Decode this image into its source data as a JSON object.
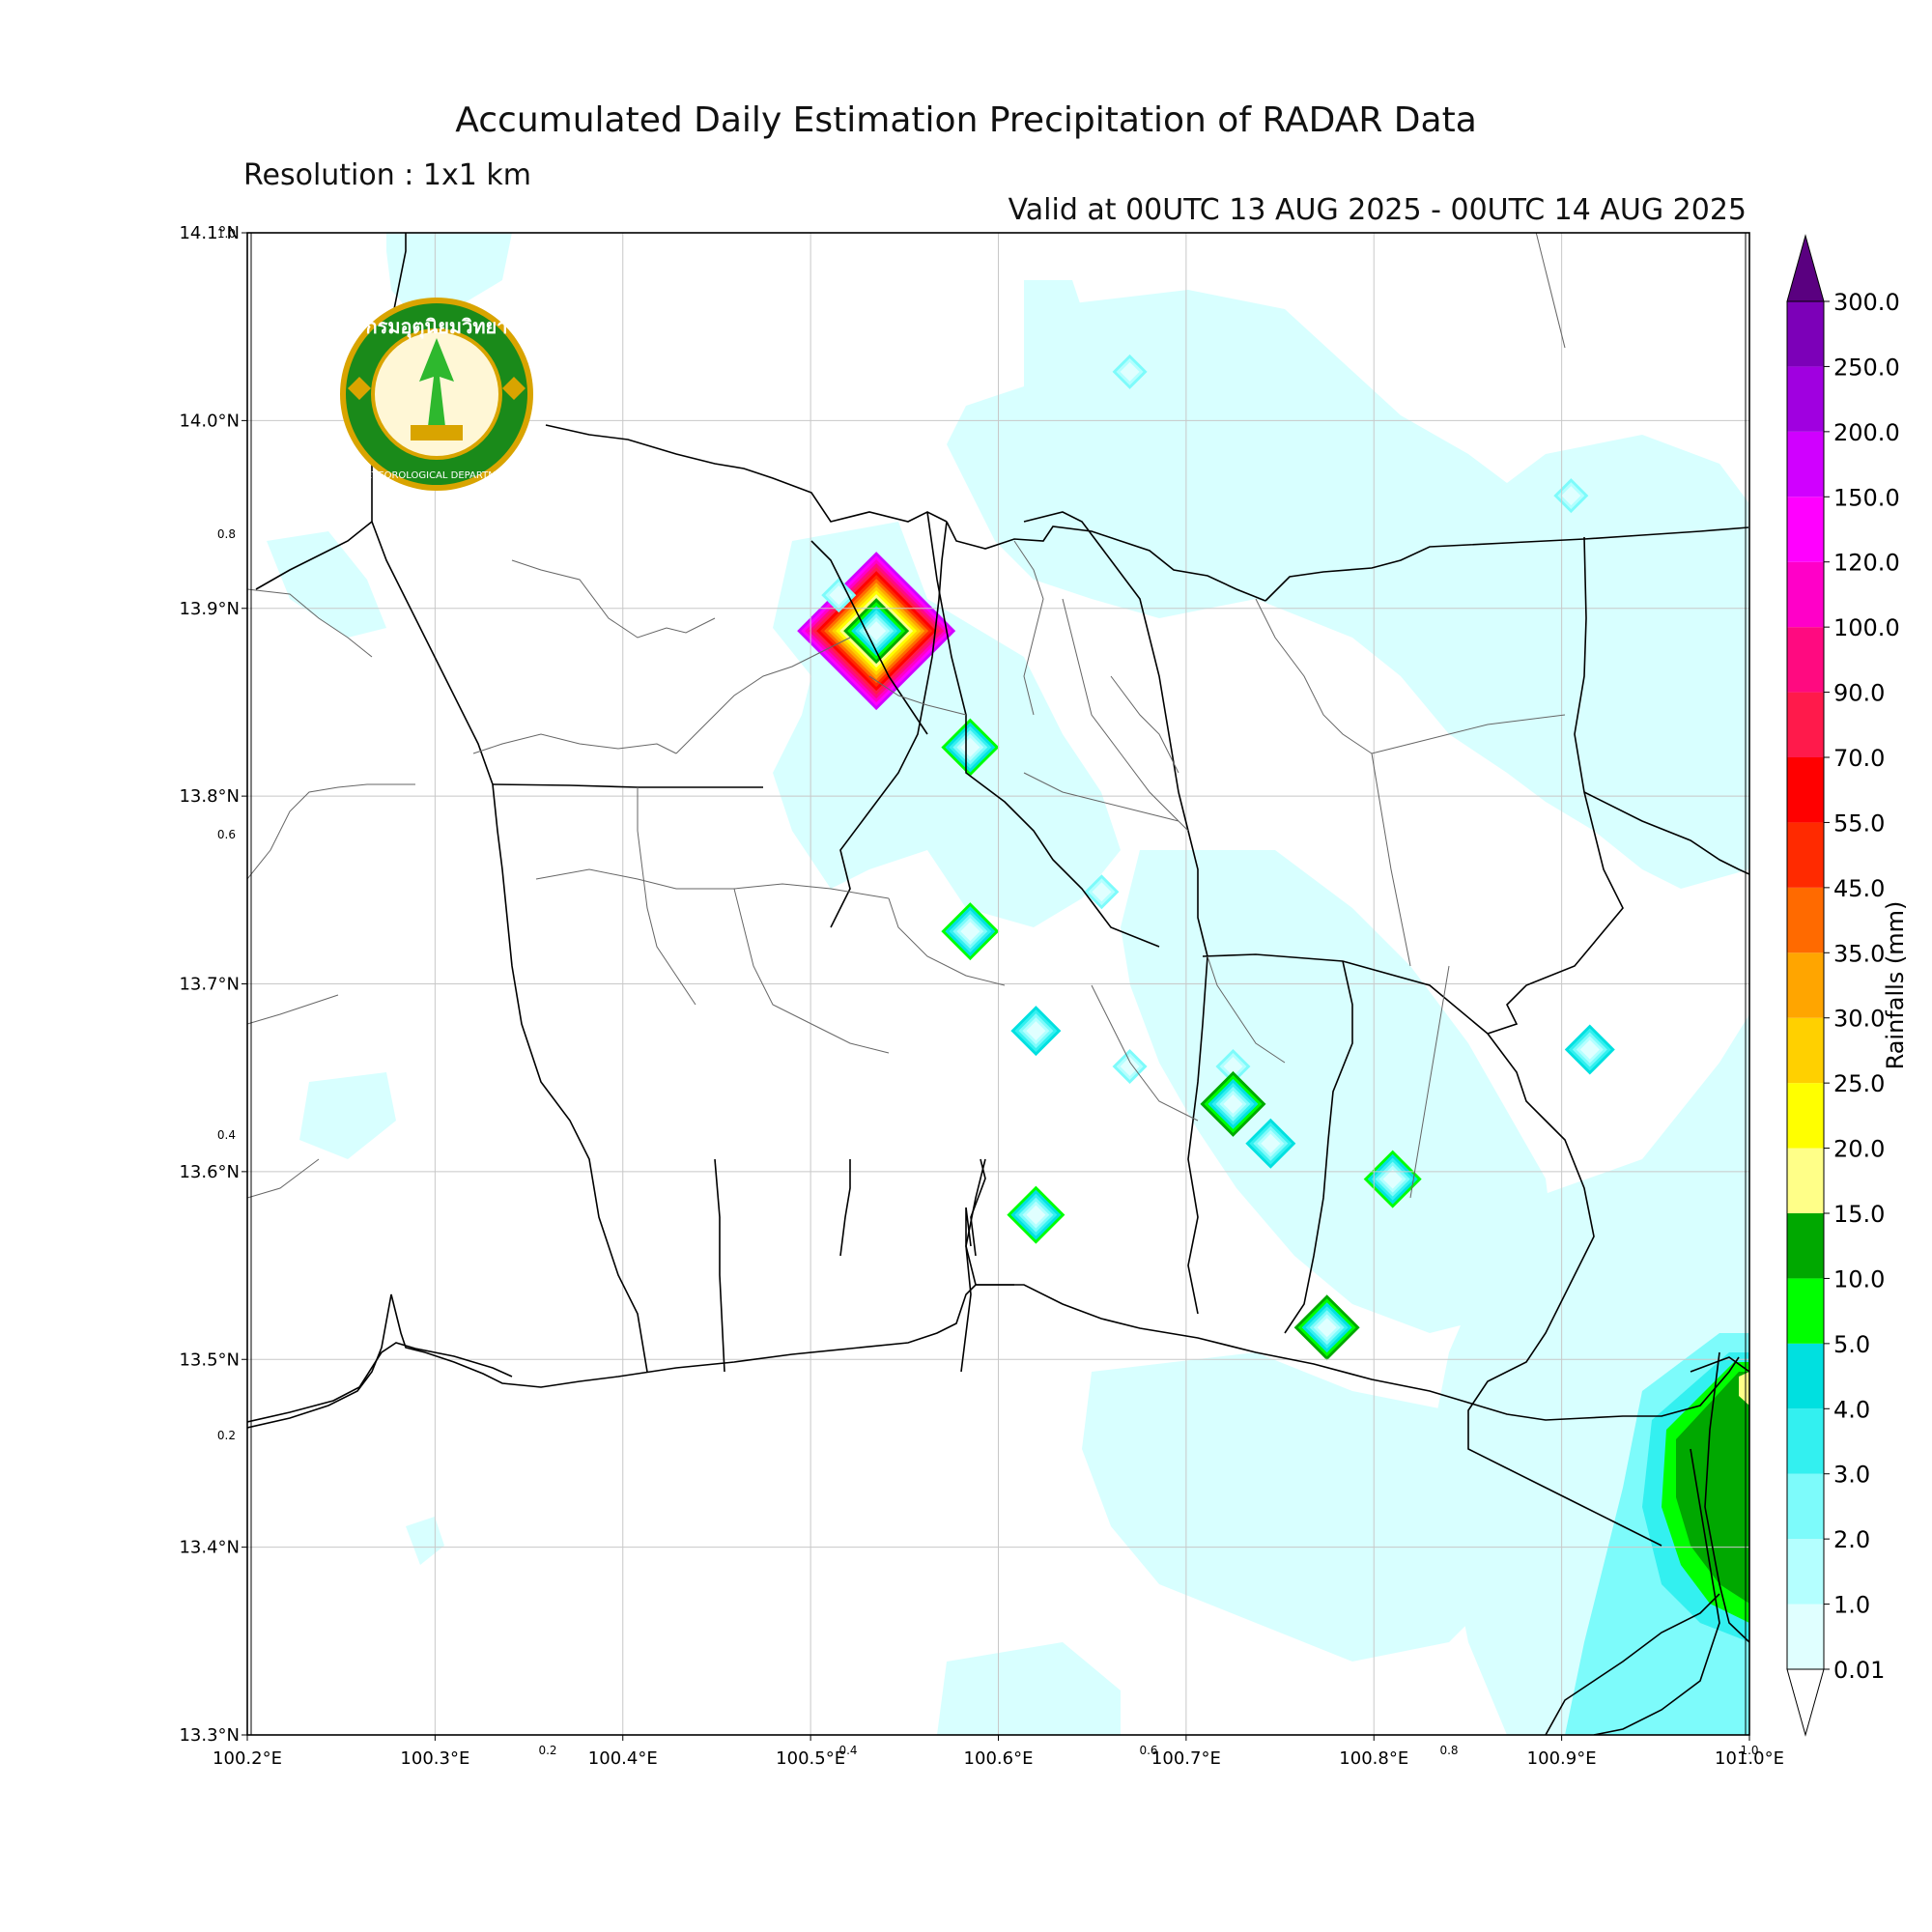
{
  "header": {
    "title": "Accumulated Daily Estimation Precipitation of RADAR Data",
    "subtitle": "Resolution : 1x1 km",
    "valid": "Valid at 00UTC 13 AUG 2025 - 00UTC 14 AUG 2025"
  },
  "logo": {
    "name_thai": "กรมอุตุนิยมวิทยา",
    "name_english": "METEOROLOGICAL DEPARTMENT"
  },
  "map": {
    "extent": {
      "lon": [
        100.2,
        101.0
      ],
      "lat": [
        13.3,
        14.1
      ]
    },
    "lon_ticks": [
      {
        "value": 100.2,
        "label": "100.2°E"
      },
      {
        "value": 100.3,
        "label": "100.3°E"
      },
      {
        "value": 100.4,
        "label": "100.4°E"
      },
      {
        "value": 100.5,
        "label": "100.5°E"
      },
      {
        "value": 100.6,
        "label": "100.6°E"
      },
      {
        "value": 100.7,
        "label": "100.7°E"
      },
      {
        "value": 100.8,
        "label": "100.8°E"
      },
      {
        "value": 100.9,
        "label": "100.9°E"
      },
      {
        "value": 101.0,
        "label": "101.0°E"
      }
    ],
    "lat_ticks": [
      {
        "value": 13.3,
        "label": "13.3°N"
      },
      {
        "value": 13.4,
        "label": "13.4°N"
      },
      {
        "value": 13.5,
        "label": "13.5°N"
      },
      {
        "value": 13.6,
        "label": "13.6°N"
      },
      {
        "value": 13.7,
        "label": "13.7°N"
      },
      {
        "value": 13.8,
        "label": "13.8°N"
      },
      {
        "value": 13.9,
        "label": "13.9°N"
      },
      {
        "value": 14.0,
        "label": "14.0°N"
      },
      {
        "value": 14.1,
        "label": "14.1°N"
      }
    ],
    "secondary_ticks_x": [
      "0.2",
      "0.4",
      "0.6",
      "0.8",
      "1.0"
    ],
    "secondary_ticks_y": [
      "0.2",
      "0.4",
      "0.6",
      "0.8",
      "1.0"
    ]
  },
  "colorbar": {
    "label": "Rainfalls (mm)",
    "levels": [
      "0.01",
      "1.0",
      "2.0",
      "3.0",
      "4.0",
      "5.0",
      "10.0",
      "15.0",
      "20.0",
      "25.0",
      "30.0",
      "35.0",
      "45.0",
      "55.0",
      "70.0",
      "90.0",
      "100.0",
      "120.0",
      "150.0",
      "200.0",
      "250.0",
      "300.0"
    ],
    "colors": [
      "#e0ffff",
      "#b4ffff",
      "#7dfbfb",
      "#33f0f0",
      "#00e0e0",
      "#00ff00",
      "#00a800",
      "#ffff88",
      "#ffff00",
      "#ffd000",
      "#ffa500",
      "#ff6a00",
      "#ff2a00",
      "#ff0000",
      "#ff1a4b",
      "#ff0a80",
      "#ff00c8",
      "#ff00ff",
      "#d000ff",
      "#a000e0",
      "#7c00b8"
    ],
    "over_color": "#5a0080"
  },
  "chart_data": {
    "type": "heatmap",
    "title": "Accumulated Daily Estimation Precipitation of RADAR Data",
    "units": "mm",
    "xlim": [
      100.2,
      101.0
    ],
    "ylim": [
      13.3,
      14.1
    ],
    "rain_cells": [
      {
        "lon": 100.535,
        "lat": 13.888,
        "mm": 150
      },
      {
        "lon": 100.515,
        "lat": 13.907,
        "mm": 2
      },
      {
        "lon": 100.585,
        "lat": 13.826,
        "mm": 5
      },
      {
        "lon": 100.585,
        "lat": 13.728,
        "mm": 5
      },
      {
        "lon": 100.655,
        "lat": 13.749,
        "mm": 2
      },
      {
        "lon": 100.62,
        "lat": 13.675,
        "mm": 4
      },
      {
        "lon": 100.67,
        "lat": 13.656,
        "mm": 2
      },
      {
        "lon": 100.725,
        "lat": 13.656,
        "mm": 2
      },
      {
        "lon": 100.725,
        "lat": 13.636,
        "mm": 10
      },
      {
        "lon": 100.745,
        "lat": 13.615,
        "mm": 4
      },
      {
        "lon": 100.62,
        "lat": 13.577,
        "mm": 5
      },
      {
        "lon": 100.81,
        "lat": 13.596,
        "mm": 5
      },
      {
        "lon": 100.775,
        "lat": 13.517,
        "mm": 10
      },
      {
        "lon": 100.915,
        "lat": 13.665,
        "mm": 4
      },
      {
        "lon": 100.67,
        "lat": 14.026,
        "mm": 2
      },
      {
        "lon": 100.905,
        "lat": 13.96,
        "mm": 2
      },
      {
        "lon": 100.98,
        "lat": 13.43,
        "mm": 10
      },
      {
        "lon": 100.995,
        "lat": 13.48,
        "mm": 15
      },
      {
        "lon": 100.96,
        "lat": 13.38,
        "mm": 3
      }
    ]
  }
}
